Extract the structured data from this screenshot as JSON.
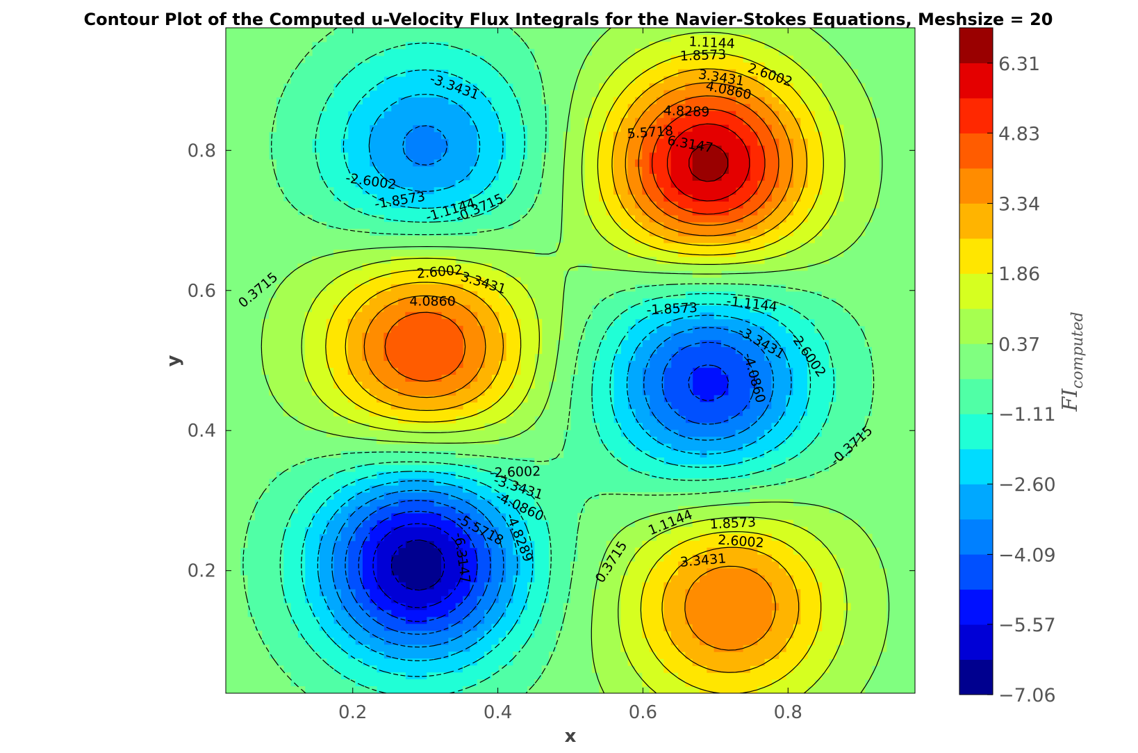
{
  "chart_data": {
    "type": "contour",
    "title": "Contour Plot of the Computed u-Velocity Flux Integrals for the Navier-Stokes Equations, Meshsize = 20",
    "xlabel": "x",
    "ylabel": "y",
    "xlim": [
      0.025,
      0.975
    ],
    "ylim": [
      0.025,
      0.975
    ],
    "x_ticks": [
      "0.2",
      "0.4",
      "0.6",
      "0.8"
    ],
    "x_tick_values": [
      0.2,
      0.4,
      0.6,
      0.8
    ],
    "y_ticks": [
      "0.2",
      "0.4",
      "0.6",
      "0.8"
    ],
    "y_tick_values": [
      0.2,
      0.4,
      0.6,
      0.8
    ],
    "colormap": "jet",
    "grid": false,
    "levels": [
      -7.0576,
      -6.3147,
      -5.5718,
      -4.8289,
      -4.086,
      -3.3431,
      -2.6002,
      -1.8573,
      -1.1144,
      -0.3715,
      0.3715,
      1.1144,
      1.8573,
      2.6002,
      3.3431,
      4.086,
      4.8289,
      5.5718,
      6.3147,
      7.0576
    ],
    "colorbar": {
      "label": "FI_computed",
      "label_base": "FI",
      "label_sub": "computed",
      "ticks": [
        "−7.06",
        "−5.57",
        "−4.09",
        "−2.60",
        "−1.11",
        "0.37",
        "1.86",
        "3.34",
        "4.83",
        "6.31"
      ],
      "tick_values": [
        -7.06,
        -5.57,
        -4.09,
        -2.6,
        -1.11,
        0.37,
        1.86,
        3.34,
        4.83,
        6.31
      ],
      "colors": [
        "#00008f",
        "#0000d6",
        "#0010ff",
        "#0050ff",
        "#0080ff",
        "#00a8ff",
        "#00dcff",
        "#20ffd6",
        "#50ffa6",
        "#80ff80",
        "#a6ff50",
        "#d6ff20",
        "#ffe600",
        "#ffb400",
        "#ff8c00",
        "#ff5c00",
        "#ff2800",
        "#e40000",
        "#9a0000"
      ]
    },
    "extrema": [
      {
        "x": 0.3,
        "y": 0.8,
        "value": -3.6
      },
      {
        "x": 0.69,
        "y": 0.78,
        "value": 6.6
      },
      {
        "x": 0.3,
        "y": 0.52,
        "value": 4.9
      },
      {
        "x": 0.69,
        "y": 0.47,
        "value": -5.1
      },
      {
        "x": 0.29,
        "y": 0.21,
        "value": -6.8
      },
      {
        "x": 0.72,
        "y": 0.15,
        "value": 4.1
      }
    ],
    "contour_labels": [
      {
        "text": "-3.3431",
        "x": 0.34,
        "y": 0.89,
        "angle": 20
      },
      {
        "text": "-2.6002",
        "x": 0.225,
        "y": 0.755,
        "angle": 8
      },
      {
        "text": "-1.8573",
        "x": 0.265,
        "y": 0.728,
        "angle": -9
      },
      {
        "text": "-1.1144",
        "x": 0.335,
        "y": 0.714,
        "angle": -17
      },
      {
        "text": "-0.3715",
        "x": 0.375,
        "y": 0.717,
        "angle": -24
      },
      {
        "text": "1.1144",
        "x": 0.695,
        "y": 0.953,
        "angle": 3
      },
      {
        "text": "1.8573",
        "x": 0.683,
        "y": 0.935,
        "angle": -2
      },
      {
        "text": "2.6002",
        "x": 0.775,
        "y": 0.907,
        "angle": 19
      },
      {
        "text": "3.3431",
        "x": 0.708,
        "y": 0.903,
        "angle": 9
      },
      {
        "text": "4.0860",
        "x": 0.718,
        "y": 0.885,
        "angle": 12
      },
      {
        "text": "4.8289",
        "x": 0.66,
        "y": 0.855,
        "angle": 2
      },
      {
        "text": "5.5718",
        "x": 0.61,
        "y": 0.825,
        "angle": -4
      },
      {
        "text": "6.3147",
        "x": 0.665,
        "y": 0.808,
        "angle": 10
      },
      {
        "text": "0.3715",
        "x": 0.07,
        "y": 0.6,
        "angle": -40
      },
      {
        "text": "2.6002",
        "x": 0.32,
        "y": 0.626,
        "angle": -5
      },
      {
        "text": "3.3431",
        "x": 0.38,
        "y": 0.61,
        "angle": 17
      },
      {
        "text": "4.0860",
        "x": 0.31,
        "y": 0.584,
        "angle": 0
      },
      {
        "text": "-1.8573",
        "x": 0.64,
        "y": 0.573,
        "angle": -3
      },
      {
        "text": "-1.1144",
        "x": 0.75,
        "y": 0.58,
        "angle": 7
      },
      {
        "text": "-3.3431",
        "x": 0.763,
        "y": 0.525,
        "angle": 30
      },
      {
        "text": "-2.6002",
        "x": 0.827,
        "y": 0.508,
        "angle": 55
      },
      {
        "text": "-4.0860",
        "x": 0.753,
        "y": 0.475,
        "angle": 75
      },
      {
        "text": "-0.3715",
        "x": 0.888,
        "y": 0.378,
        "angle": -42
      },
      {
        "text": "-2.6002",
        "x": 0.424,
        "y": 0.34,
        "angle": -2
      },
      {
        "text": "-3.3431",
        "x": 0.428,
        "y": 0.318,
        "angle": 18
      },
      {
        "text": "-4.0860",
        "x": 0.43,
        "y": 0.291,
        "angle": 25
      },
      {
        "text": "-5.5718",
        "x": 0.375,
        "y": 0.258,
        "angle": 28
      },
      {
        "text": "-4.8289",
        "x": 0.429,
        "y": 0.247,
        "angle": 68
      },
      {
        "text": "-6.3147",
        "x": 0.35,
        "y": 0.218,
        "angle": 82
      },
      {
        "text": "0.3715",
        "x": 0.557,
        "y": 0.212,
        "angle": -57
      },
      {
        "text": "1.1144",
        "x": 0.638,
        "y": 0.268,
        "angle": -22
      },
      {
        "text": "1.8573",
        "x": 0.724,
        "y": 0.267,
        "angle": -3
      },
      {
        "text": "2.6002",
        "x": 0.735,
        "y": 0.241,
        "angle": 4
      },
      {
        "text": "3.3431",
        "x": 0.683,
        "y": 0.214,
        "angle": -5
      }
    ]
  }
}
